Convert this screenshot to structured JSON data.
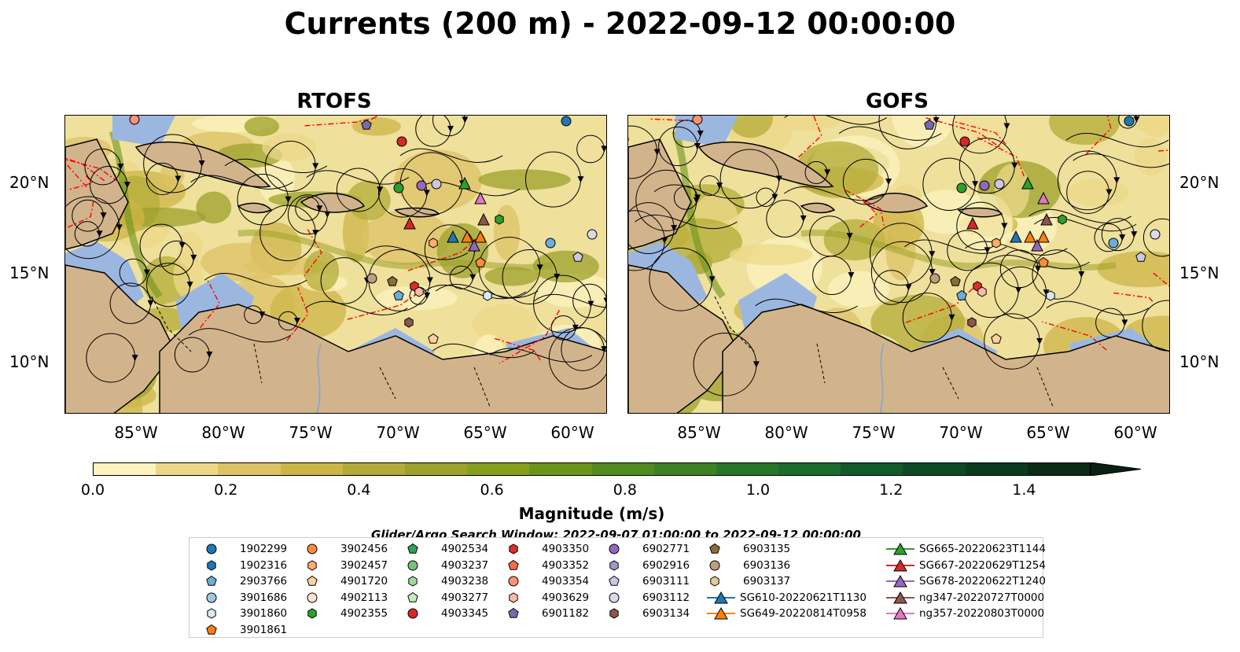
{
  "title": "Currents (200 m) - 2022-09-12 00:00:00",
  "panels": [
    {
      "name": "RTOFS"
    },
    {
      "name": "GOFS"
    }
  ],
  "axes": {
    "lon_ticks": [
      "85°W",
      "80°W",
      "75°W",
      "70°W",
      "65°W",
      "60°W"
    ],
    "lat_ticks": [
      "20°N",
      "15°N",
      "10°N"
    ]
  },
  "colorbar": {
    "label": "Magnitude (m/s)",
    "ticks": [
      "0.0",
      "0.2",
      "0.4",
      "0.6",
      "0.8",
      "1.0",
      "1.2",
      "1.4"
    ],
    "colors": [
      "#fcf3bd",
      "#ecd888",
      "#ddc266",
      "#cdb648",
      "#b4ac38",
      "#9ca22b",
      "#869f1f",
      "#6a951a",
      "#528b1f",
      "#3d8125",
      "#2a7628",
      "#1a6b2c",
      "#125a29",
      "#0d4a24",
      "#0b3b1f",
      "#0a2b18"
    ],
    "range": [
      0.0,
      1.5
    ]
  },
  "legend": {
    "title": "Glider/Argo Search Window: 2022-09-07 01:00:00 to 2022-09-12 00:00:00",
    "columns": [
      [
        {
          "label": "1902299",
          "marker": "circle",
          "color": "#1f77b4"
        },
        {
          "label": "1902316",
          "marker": "hexagon",
          "color": "#1f77b4"
        },
        {
          "label": "2903766",
          "marker": "pentagon",
          "color": "#6baed6"
        },
        {
          "label": "3901686",
          "marker": "circle",
          "color": "#9ecae1"
        },
        {
          "label": "3901860",
          "marker": "hexagon",
          "color": "#dbe9f6"
        },
        {
          "label": "3901861",
          "marker": "pentagon",
          "color": "#ff7f0e"
        }
      ],
      [
        {
          "label": "3902456",
          "marker": "circle",
          "color": "#fd8d3c"
        },
        {
          "label": "3902457",
          "marker": "hexagon",
          "color": "#fdae6b"
        },
        {
          "label": "4901720",
          "marker": "pentagon",
          "color": "#fdd0a2"
        },
        {
          "label": "4902113",
          "marker": "circle",
          "color": "#fee6ce"
        },
        {
          "label": "4902355",
          "marker": "hexagon",
          "color": "#2ca02c"
        }
      ],
      [
        {
          "label": "4902534",
          "marker": "pentagon",
          "color": "#31a354"
        },
        {
          "label": "4903237",
          "marker": "circle",
          "color": "#74c476"
        },
        {
          "label": "4903238",
          "marker": "hexagon",
          "color": "#a1d99b"
        },
        {
          "label": "4903277",
          "marker": "pentagon",
          "color": "#c7e9c0"
        },
        {
          "label": "4903345",
          "marker": "circle",
          "color": "#d62728"
        }
      ],
      [
        {
          "label": "4903350",
          "marker": "hexagon",
          "color": "#de2d26"
        },
        {
          "label": "4903352",
          "marker": "pentagon",
          "color": "#fb6a4a"
        },
        {
          "label": "4903354",
          "marker": "circle",
          "color": "#fc9272"
        },
        {
          "label": "4903629",
          "marker": "hexagon",
          "color": "#fcbba1"
        },
        {
          "label": "6901182",
          "marker": "pentagon",
          "color": "#756bb1"
        }
      ],
      [
        {
          "label": "6902771",
          "marker": "circle",
          "color": "#9467bd"
        },
        {
          "label": "6902916",
          "marker": "hexagon",
          "color": "#9e9ac8"
        },
        {
          "label": "6903111",
          "marker": "pentagon",
          "color": "#cbc9e2"
        },
        {
          "label": "6903112",
          "marker": "circle",
          "color": "#dadaeb"
        },
        {
          "label": "6903134",
          "marker": "hexagon",
          "color": "#8c564b"
        }
      ],
      [
        {
          "label": "6903135",
          "marker": "pentagon",
          "color": "#8c6d31"
        },
        {
          "label": "6903136",
          "marker": "circle",
          "color": "#bd9e7e"
        },
        {
          "label": "6903137",
          "marker": "hexagon",
          "color": "#e7cb94"
        },
        {
          "label": "SG610-20220621T1130",
          "marker": "triangle-line",
          "color": "#1f77b4"
        },
        {
          "label": "SG649-20220814T0958",
          "marker": "triangle-line",
          "color": "#ff7f0e"
        }
      ],
      [
        {
          "label": "SG665-20220623T1144",
          "marker": "triangle-line",
          "color": "#2ca02c"
        },
        {
          "label": "SG667-20220629T1254",
          "marker": "triangle-line",
          "color": "#d62728"
        },
        {
          "label": "SG678-20220622T1240",
          "marker": "triangle-line",
          "color": "#9467bd"
        },
        {
          "label": "ng347-20220727T0000",
          "marker": "triangle-line",
          "color": "#8c564b"
        },
        {
          "label": "ng357-20220803T0000",
          "marker": "triangle-line",
          "color": "#e377c2"
        }
      ]
    ]
  },
  "colors": {
    "land": "#d2b48c",
    "shelf": "#9bb7e0",
    "ocean_base": "#efe09c",
    "eez_line": "#ff0000"
  }
}
